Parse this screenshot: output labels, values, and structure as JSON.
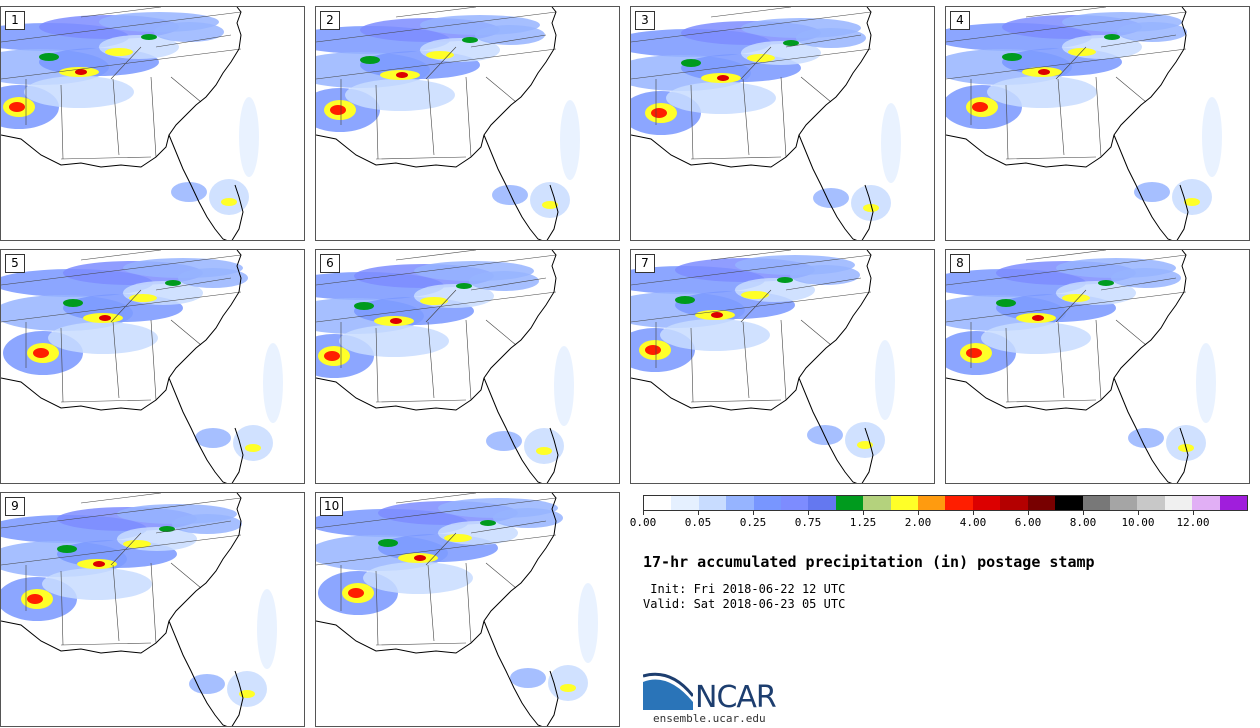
{
  "panels": [
    {
      "label": "1"
    },
    {
      "label": "2"
    },
    {
      "label": "3"
    },
    {
      "label": "4"
    },
    {
      "label": "5"
    },
    {
      "label": "6"
    },
    {
      "label": "7"
    },
    {
      "label": "8"
    },
    {
      "label": "9"
    },
    {
      "label": "10"
    }
  ],
  "colorbar": {
    "colors": [
      "#ffffff",
      "#e5f0ff",
      "#c8dcff",
      "#96b4ff",
      "#7896ff",
      "#7d8cff",
      "#6478f0",
      "#009b1e",
      "#b4d27d",
      "#ffff28",
      "#ff9b0f",
      "#ff1e00",
      "#dc0000",
      "#b40000",
      "#780000",
      "#000000",
      "#787878",
      "#a5a5a5",
      "#c8c8c8",
      "#f0f0f0",
      "#e1aff5",
      "#a01edc"
    ],
    "tick_labels": [
      {
        "text": "0.00",
        "index": 0
      },
      {
        "text": "0.05",
        "index": 2
      },
      {
        "text": "0.25",
        "index": 4
      },
      {
        "text": "0.75",
        "index": 6
      },
      {
        "text": "1.25",
        "index": 8
      },
      {
        "text": "2.00",
        "index": 10
      },
      {
        "text": "4.00",
        "index": 12
      },
      {
        "text": "6.00",
        "index": 14
      },
      {
        "text": "8.00",
        "index": 16
      },
      {
        "text": "10.00",
        "index": 18
      },
      {
        "text": "12.00",
        "index": 20
      }
    ]
  },
  "title": "17-hr accumulated precipitation (in) postage stamp",
  "init": " Init: Fri 2018-06-22 12 UTC",
  "valid": "Valid: Sat 2018-06-23 05 UTC",
  "logo": {
    "text": "NCAR",
    "brand_color": "#1d3e6f",
    "accent_color": "#2a74b8"
  },
  "site": "ensemble.ucar.edu"
}
